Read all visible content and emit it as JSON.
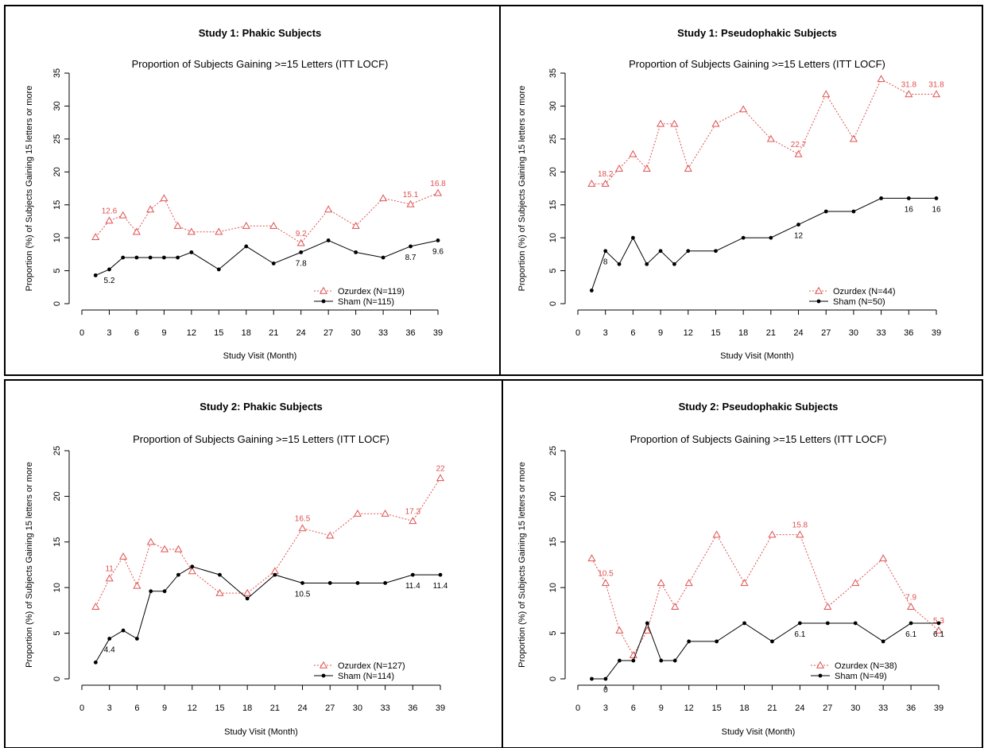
{
  "colors": {
    "ozurdex": "#e05050",
    "sham": "#000000",
    "frame": "#000000"
  },
  "chart_data": [
    {
      "type": "line",
      "title": "Study 1:  Phakic Subjects",
      "subtitle": "Proportion of Subjects Gaining >=15 Letters (ITT LOCF)",
      "xlabel": "Study Visit (Month)",
      "ylabel": "Proportion (%) of Subjects Gaining 15 letters or more",
      "xlim": [
        0,
        39
      ],
      "ylim": [
        0,
        35
      ],
      "xticks": [
        0,
        3,
        6,
        9,
        12,
        15,
        18,
        21,
        24,
        27,
        30,
        33,
        36,
        39
      ],
      "yticks": [
        0,
        5,
        10,
        15,
        20,
        25,
        30,
        35
      ],
      "legend_position": "bottom-right",
      "x": [
        1.5,
        3,
        4.5,
        6,
        7.5,
        9,
        10.5,
        12,
        15,
        18,
        21,
        24,
        27,
        30,
        33,
        36,
        39
      ],
      "series": [
        {
          "name": "Ozurdex (N=119)",
          "color": "#e05050",
          "marker": "triangle",
          "dashed": true,
          "values": [
            10.1,
            12.6,
            13.4,
            10.9,
            14.3,
            16.0,
            11.8,
            10.9,
            10.9,
            11.8,
            11.8,
            9.2,
            14.3,
            11.8,
            16.0,
            15.1,
            16.8
          ],
          "labels": [
            {
              "index": 1,
              "text": "12.6"
            },
            {
              "index": 11,
              "text": "9.2"
            },
            {
              "index": 15,
              "text": "15.1"
            },
            {
              "index": 16,
              "text": "16.8"
            }
          ]
        },
        {
          "name": "Sham (N=115)",
          "color": "#000000",
          "marker": "dot",
          "dashed": false,
          "values": [
            4.3,
            5.2,
            7.0,
            7.0,
            7.0,
            7.0,
            7.0,
            7.8,
            5.2,
            8.7,
            6.1,
            7.8,
            9.6,
            7.8,
            7.0,
            8.7,
            9.6
          ],
          "labels": [
            {
              "index": 1,
              "text": "5.2"
            },
            {
              "index": 11,
              "text": "7.8"
            },
            {
              "index": 15,
              "text": "8.7"
            },
            {
              "index": 16,
              "text": "9.6"
            }
          ]
        }
      ]
    },
    {
      "type": "line",
      "title": "Study 1:  Pseudophakic Subjects",
      "subtitle": "Proportion of Subjects Gaining >=15 Letters (ITT LOCF)",
      "xlabel": "Study Visit (Month)",
      "ylabel": "Proportion (%) of Subjects Gaining 15 letters or more",
      "xlim": [
        0,
        39
      ],
      "ylim": [
        0,
        35
      ],
      "xticks": [
        0,
        3,
        6,
        9,
        12,
        15,
        18,
        21,
        24,
        27,
        30,
        33,
        36,
        39
      ],
      "yticks": [
        0,
        5,
        10,
        15,
        20,
        25,
        30,
        35
      ],
      "legend_position": "bottom-right",
      "x": [
        1.5,
        3,
        4.5,
        6,
        7.5,
        9,
        10.5,
        12,
        15,
        18,
        21,
        24,
        27,
        30,
        33,
        36,
        39
      ],
      "series": [
        {
          "name": "Ozurdex (N=44)",
          "color": "#e05050",
          "marker": "triangle",
          "dashed": true,
          "values": [
            18.2,
            18.2,
            20.5,
            22.7,
            20.5,
            27.3,
            27.3,
            20.5,
            27.3,
            29.5,
            25.0,
            22.7,
            31.8,
            25.0,
            34.1,
            31.8,
            31.8
          ],
          "labels": [
            {
              "index": 1,
              "text": "18.2"
            },
            {
              "index": 11,
              "text": "22.7"
            },
            {
              "index": 15,
              "text": "31.8"
            },
            {
              "index": 16,
              "text": "31.8"
            }
          ]
        },
        {
          "name": "Sham (N=50)",
          "color": "#000000",
          "marker": "dot",
          "dashed": false,
          "values": [
            2,
            8,
            6,
            10,
            6,
            8,
            6,
            8,
            8,
            10,
            10,
            12,
            14,
            14,
            16,
            16,
            16
          ],
          "labels": [
            {
              "index": 1,
              "text": "8"
            },
            {
              "index": 11,
              "text": "12"
            },
            {
              "index": 15,
              "text": "16"
            },
            {
              "index": 16,
              "text": "16"
            }
          ]
        }
      ]
    },
    {
      "type": "line",
      "title": "Study 2:  Phakic Subjects",
      "subtitle": "Proportion of Subjects Gaining >=15 Letters (ITT LOCF)",
      "xlabel": "Study Visit (Month)",
      "ylabel": "Proportion (%) of Subjects Gaining 15 letters or more",
      "xlim": [
        0,
        39
      ],
      "ylim": [
        0,
        25
      ],
      "xticks": [
        0,
        3,
        6,
        9,
        12,
        15,
        18,
        21,
        24,
        27,
        30,
        33,
        36,
        39
      ],
      "yticks": [
        0,
        5,
        10,
        15,
        20,
        25
      ],
      "legend_position": "bottom-right",
      "x": [
        1.5,
        3,
        4.5,
        6,
        7.5,
        9,
        10.5,
        12,
        15,
        18,
        21,
        24,
        27,
        30,
        33,
        36,
        39
      ],
      "series": [
        {
          "name": "Ozurdex (N=127)",
          "color": "#e05050",
          "marker": "triangle",
          "dashed": true,
          "values": [
            7.9,
            11.0,
            13.4,
            10.2,
            15.0,
            14.2,
            14.2,
            11.8,
            9.4,
            9.4,
            11.8,
            16.5,
            15.7,
            18.1,
            18.1,
            17.3,
            22.0
          ],
          "labels": [
            {
              "index": 1,
              "text": "11"
            },
            {
              "index": 11,
              "text": "16.5"
            },
            {
              "index": 15,
              "text": "17.3"
            },
            {
              "index": 16,
              "text": "22"
            }
          ]
        },
        {
          "name": "Sham (N=114)",
          "color": "#000000",
          "marker": "dot",
          "dashed": false,
          "values": [
            1.8,
            4.4,
            5.3,
            4.4,
            9.6,
            9.6,
            11.4,
            12.3,
            11.4,
            8.8,
            11.4,
            10.5,
            10.5,
            10.5,
            10.5,
            11.4,
            11.4
          ],
          "labels": [
            {
              "index": 1,
              "text": "4.4"
            },
            {
              "index": 11,
              "text": "10.5"
            },
            {
              "index": 15,
              "text": "11.4"
            },
            {
              "index": 16,
              "text": "11.4"
            }
          ]
        }
      ]
    },
    {
      "type": "line",
      "title": "Study 2:  Pseudophakic Subjects",
      "subtitle": "Proportion of Subjects Gaining >=15 Letters (ITT LOCF)",
      "xlabel": "Study Visit (Month)",
      "ylabel": "Proportion (%) of Subjects Gaining 15 letters or more",
      "xlim": [
        0,
        39
      ],
      "ylim": [
        0,
        25
      ],
      "xticks": [
        0,
        3,
        6,
        9,
        12,
        15,
        18,
        21,
        24,
        27,
        30,
        33,
        36,
        39
      ],
      "yticks": [
        0,
        5,
        10,
        15,
        20,
        25
      ],
      "legend_position": "bottom-right",
      "x": [
        1.5,
        3,
        4.5,
        6,
        7.5,
        9,
        10.5,
        12,
        15,
        18,
        21,
        24,
        27,
        30,
        33,
        36,
        39
      ],
      "series": [
        {
          "name": "Ozurdex (N=38)",
          "color": "#e05050",
          "marker": "triangle",
          "dashed": true,
          "values": [
            13.2,
            10.5,
            5.3,
            2.6,
            5.3,
            10.5,
            7.9,
            10.5,
            15.8,
            10.5,
            15.8,
            15.8,
            7.9,
            10.5,
            13.2,
            7.9,
            5.3
          ],
          "labels": [
            {
              "index": 1,
              "text": "10.5"
            },
            {
              "index": 11,
              "text": "15.8"
            },
            {
              "index": 15,
              "text": "7.9"
            },
            {
              "index": 16,
              "text": "5.3"
            }
          ]
        },
        {
          "name": "Sham (N=49)",
          "color": "#000000",
          "marker": "dot",
          "dashed": false,
          "values": [
            0,
            0,
            2.0,
            2.0,
            6.1,
            2.0,
            2.0,
            4.1,
            4.1,
            6.1,
            4.1,
            6.1,
            6.1,
            6.1,
            4.1,
            6.1,
            6.1
          ],
          "labels": [
            {
              "index": 1,
              "text": "0"
            },
            {
              "index": 11,
              "text": "6.1"
            },
            {
              "index": 15,
              "text": "6.1"
            },
            {
              "index": 16,
              "text": "6.1"
            }
          ]
        }
      ]
    }
  ]
}
